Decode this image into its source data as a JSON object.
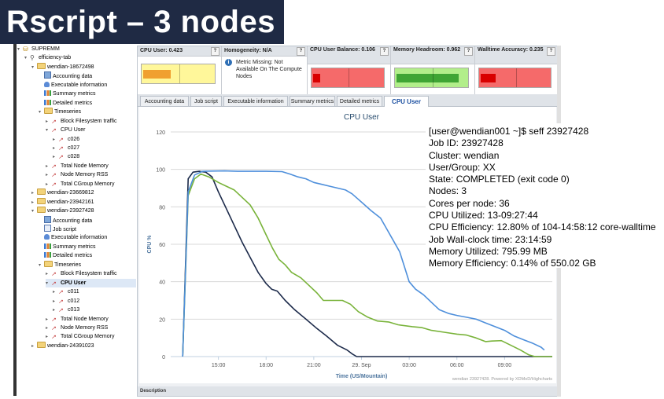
{
  "banner": {
    "title": "Rscript – 3 nodes"
  },
  "tree": {
    "items": [
      {
        "label": "SUPREMM",
        "indent": 0,
        "icon": "db",
        "tog": "▾"
      },
      {
        "label": "efficiency-tab",
        "indent": 1,
        "icon": "magn",
        "tog": "▾"
      },
      {
        "label": "wendian-18672498",
        "indent": 2,
        "icon": "folder",
        "tog": "▾"
      },
      {
        "label": "Accounting data",
        "indent": 3,
        "icon": "acct",
        "tog": ""
      },
      {
        "label": "Executable information",
        "indent": 3,
        "icon": "exec",
        "tog": ""
      },
      {
        "label": "Summary metrics",
        "indent": 3,
        "icon": "bars",
        "tog": ""
      },
      {
        "label": "Detailed metrics",
        "indent": 3,
        "icon": "bars",
        "tog": ""
      },
      {
        "label": "Timeseries",
        "indent": 3,
        "icon": "folder",
        "tog": "▾"
      },
      {
        "label": "Block Filesystem traffic",
        "indent": 4,
        "icon": "spark",
        "tog": "▸"
      },
      {
        "label": "CPU User",
        "indent": 4,
        "icon": "spark",
        "tog": "▾"
      },
      {
        "label": "c026",
        "indent": 5,
        "icon": "spark",
        "tog": "▸"
      },
      {
        "label": "c027",
        "indent": 5,
        "icon": "spark",
        "tog": "▸"
      },
      {
        "label": "c028",
        "indent": 5,
        "icon": "spark",
        "tog": "▸"
      },
      {
        "label": "Total Node Memory",
        "indent": 4,
        "icon": "spark",
        "tog": "▸"
      },
      {
        "label": "Node Memory RSS",
        "indent": 4,
        "icon": "spark",
        "tog": "▸"
      },
      {
        "label": "Total CGroup Memory",
        "indent": 4,
        "icon": "spark",
        "tog": "▸"
      },
      {
        "label": "wendian-23669812",
        "indent": 2,
        "icon": "folder",
        "tog": "▸"
      },
      {
        "label": "wendian-23942161",
        "indent": 2,
        "icon": "folder",
        "tog": "▸"
      },
      {
        "label": "wendian-23927428",
        "indent": 2,
        "icon": "folder",
        "tog": "▾"
      },
      {
        "label": "Accounting data",
        "indent": 3,
        "icon": "acct",
        "tog": ""
      },
      {
        "label": "Job script",
        "indent": 3,
        "icon": "script",
        "tog": ""
      },
      {
        "label": "Executable information",
        "indent": 3,
        "icon": "exec",
        "tog": ""
      },
      {
        "label": "Summary metrics",
        "indent": 3,
        "icon": "bars",
        "tog": ""
      },
      {
        "label": "Detailed metrics",
        "indent": 3,
        "icon": "bars",
        "tog": ""
      },
      {
        "label": "Timeseries",
        "indent": 3,
        "icon": "folder",
        "tog": "▾"
      },
      {
        "label": "Block Filesystem traffic",
        "indent": 4,
        "icon": "spark",
        "tog": "▸"
      },
      {
        "label": "CPU User",
        "indent": 4,
        "icon": "spark",
        "tog": "▾",
        "selected": true
      },
      {
        "label": "c011",
        "indent": 5,
        "icon": "spark",
        "tog": "▸"
      },
      {
        "label": "c012",
        "indent": 5,
        "icon": "spark",
        "tog": "▸"
      },
      {
        "label": "c013",
        "indent": 5,
        "icon": "spark",
        "tog": "▸"
      },
      {
        "label": "Total Node Memory",
        "indent": 4,
        "icon": "spark",
        "tog": "▸"
      },
      {
        "label": "Node Memory RSS",
        "indent": 4,
        "icon": "spark",
        "tog": "▸"
      },
      {
        "label": "Total CGroup Memory",
        "indent": 4,
        "icon": "spark",
        "tog": "▸"
      },
      {
        "label": "wendian-24391023",
        "indent": 2,
        "icon": "folder",
        "tog": "▸"
      }
    ]
  },
  "summary": {
    "cells": [
      {
        "title": "CPU User: 0.423",
        "kind": "gauge",
        "bg": "#fff79a",
        "fill": "#f0a030",
        "value": 0.423
      },
      {
        "title": "Homogeneity: N/A",
        "kind": "message",
        "message": "Metric Missing: Not Available On The Compute Nodes"
      },
      {
        "title": "CPU User Balance: 0.106",
        "kind": "gauge",
        "bg": "#f56a6a",
        "fill": "#d90000",
        "value": 0.106
      },
      {
        "title": "Memory Headroom: 0.962",
        "kind": "gauge",
        "bg": "#b2ee8a",
        "fill": "#3fa534",
        "value": 0.962
      },
      {
        "title": "Walltime Accuracy: 0.235",
        "kind": "gauge",
        "bg": "#f56a6a",
        "fill": "#d90000",
        "value": 0.235
      }
    ],
    "help": "?"
  },
  "tabs": [
    {
      "label": "Accounting data",
      "active": false
    },
    {
      "label": "Job script",
      "active": false
    },
    {
      "label": "Executable information",
      "active": false
    },
    {
      "label": "Summary metrics",
      "active": false
    },
    {
      "label": "Detailed metrics",
      "active": false
    },
    {
      "label": "CPU User",
      "active": true
    }
  ],
  "description_label": "Description",
  "chart_data": {
    "type": "line",
    "title": "CPU User",
    "xlabel": "Time (US/Mountain)",
    "ylabel": "CPU %",
    "ylim": [
      0,
      120
    ],
    "yticks": [
      0,
      20,
      40,
      60,
      80,
      100,
      120
    ],
    "xticks": [
      "15:00",
      "18:00",
      "21:00",
      "29. Sep",
      "03:00",
      "06:00",
      "09:00"
    ],
    "xtick_hours": [
      15,
      18,
      21,
      24,
      27,
      30,
      33
    ],
    "credit": "wendian 23927428. Powered by XDMoD/Highcharts",
    "series": [
      {
        "color": "#1c2a4a",
        "points": [
          [
            12.75,
            0
          ],
          [
            13.1,
            95
          ],
          [
            13.4,
            98.5
          ],
          [
            13.8,
            99
          ],
          [
            14.2,
            98.5
          ],
          [
            14.6,
            96
          ],
          [
            15,
            88
          ],
          [
            15.5,
            79
          ],
          [
            16,
            70
          ],
          [
            16.5,
            61
          ],
          [
            17,
            53
          ],
          [
            17.5,
            45
          ],
          [
            18,
            39
          ],
          [
            18.35,
            36
          ],
          [
            18.7,
            35
          ],
          [
            19.2,
            30
          ],
          [
            19.8,
            25
          ],
          [
            20.5,
            20
          ],
          [
            21.2,
            15
          ],
          [
            21.8,
            11
          ],
          [
            22.5,
            6
          ],
          [
            23.1,
            3.5
          ],
          [
            23.4,
            1.5
          ],
          [
            23.7,
            0
          ],
          [
            36,
            0
          ]
        ]
      },
      {
        "color": "#79b33a",
        "points": [
          [
            12.75,
            0
          ],
          [
            13.1,
            86
          ],
          [
            13.5,
            95
          ],
          [
            13.9,
            97.5
          ],
          [
            14.4,
            96
          ],
          [
            15,
            93
          ],
          [
            15.5,
            91
          ],
          [
            16,
            89
          ],
          [
            16.5,
            85
          ],
          [
            17,
            81
          ],
          [
            17.5,
            74
          ],
          [
            18,
            65
          ],
          [
            18.4,
            58
          ],
          [
            18.8,
            52
          ],
          [
            19.2,
            49
          ],
          [
            19.6,
            45
          ],
          [
            20.2,
            42
          ],
          [
            20.7,
            38
          ],
          [
            21.2,
            34
          ],
          [
            21.6,
            30
          ],
          [
            22.2,
            30
          ],
          [
            22.8,
            30
          ],
          [
            23.3,
            28
          ],
          [
            23.8,
            24
          ],
          [
            24.4,
            21
          ],
          [
            25,
            19
          ],
          [
            25.7,
            18.5
          ],
          [
            26.3,
            17
          ],
          [
            27.2,
            16
          ],
          [
            27.8,
            15.5
          ],
          [
            28.4,
            14
          ],
          [
            29.2,
            13
          ],
          [
            30,
            12
          ],
          [
            30.6,
            11.5
          ],
          [
            31.2,
            10
          ],
          [
            31.8,
            8
          ],
          [
            32.2,
            8.3
          ],
          [
            32.8,
            8.5
          ],
          [
            33.4,
            6
          ],
          [
            34,
            3.5
          ],
          [
            34.5,
            1
          ],
          [
            34.9,
            0
          ],
          [
            36,
            0
          ]
        ]
      },
      {
        "color": "#4e8fdb",
        "points": [
          [
            12.75,
            0
          ],
          [
            13.1,
            88
          ],
          [
            13.5,
            97
          ],
          [
            14,
            99
          ],
          [
            14.6,
            99.1
          ],
          [
            15.4,
            99.2
          ],
          [
            16.2,
            99
          ],
          [
            17.2,
            99
          ],
          [
            18,
            99
          ],
          [
            19,
            98.8
          ],
          [
            19.5,
            97.5
          ],
          [
            20,
            96
          ],
          [
            20.5,
            95
          ],
          [
            21,
            93
          ],
          [
            21.5,
            92
          ],
          [
            22,
            91
          ],
          [
            22.5,
            90
          ],
          [
            23,
            89
          ],
          [
            23.4,
            87
          ],
          [
            23.8,
            84
          ],
          [
            24.2,
            81
          ],
          [
            24.6,
            78
          ],
          [
            25.2,
            74
          ],
          [
            25.6,
            68
          ],
          [
            26,
            62
          ],
          [
            26.4,
            56
          ],
          [
            26.7,
            48
          ],
          [
            27,
            40
          ],
          [
            27.4,
            36
          ],
          [
            27.9,
            33
          ],
          [
            28.4,
            29
          ],
          [
            28.9,
            25
          ],
          [
            29.5,
            23
          ],
          [
            30,
            22
          ],
          [
            30.6,
            21
          ],
          [
            31.2,
            20
          ],
          [
            31.8,
            18
          ],
          [
            32.4,
            16
          ],
          [
            33,
            14
          ],
          [
            33.6,
            11
          ],
          [
            34.2,
            9
          ],
          [
            34.8,
            7
          ],
          [
            35.3,
            5
          ],
          [
            35.5,
            3.5
          ]
        ]
      }
    ],
    "xlim_hours": [
      12,
      36
    ]
  },
  "seff": {
    "lines": [
      "[user@wendian001 ~]$ seff 23927428",
      "Job ID: 23927428",
      "Cluster: wendian",
      "User/Group: XX",
      "State: COMPLETED (exit code 0)",
      "Nodes: 3",
      "Cores per node: 36",
      "CPU Utilized: 13-09:27:44",
      "CPU Efficiency: 12.80% of 104-14:58:12 core-walltime",
      "Job Wall-clock time: 23:14:59",
      "Memory Utilized: 795.99 MB",
      "Memory Efficiency: 0.14% of 550.02 GB"
    ]
  }
}
